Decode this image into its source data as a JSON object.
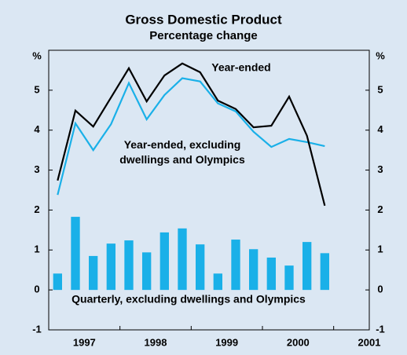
{
  "chart_data": {
    "type": "combo",
    "title": "Gross Domestic Product",
    "subtitle": "Percentage change",
    "y_unit": "%",
    "xlim": [
      1997,
      2001.5
    ],
    "xticks": [
      {
        "value": 1997.5,
        "label": "1997"
      },
      {
        "value": 1998.5,
        "label": "1998"
      },
      {
        "value": 1999.5,
        "label": "1999"
      },
      {
        "value": 2000.5,
        "label": "2000"
      },
      {
        "value": 2001.5,
        "label": "2001"
      }
    ],
    "ylim": [
      -1,
      6
    ],
    "yticks": [
      -1,
      0,
      1,
      2,
      3,
      4,
      5
    ],
    "x": [
      1997.125,
      1997.375,
      1997.625,
      1997.875,
      1998.125,
      1998.375,
      1998.625,
      1998.875,
      1999.125,
      1999.375,
      1999.625,
      1999.875,
      2000.125,
      2000.375,
      2000.625,
      2000.875
    ],
    "series": [
      {
        "name": "Quarterly, excluding dwellings and Olympics",
        "type": "bar",
        "color": "#1ab0e8",
        "values": [
          0.41,
          1.83,
          0.85,
          1.16,
          1.24,
          0.94,
          1.44,
          1.54,
          1.14,
          0.41,
          1.26,
          1.02,
          0.81,
          0.61,
          1.2,
          0.92
        ]
      },
      {
        "name": "Year-ended, excluding dwellings and Olympics",
        "type": "line",
        "color": "#1ab0e8",
        "values": [
          2.38,
          4.17,
          3.5,
          4.15,
          5.18,
          4.27,
          4.88,
          5.3,
          5.22,
          4.67,
          4.47,
          3.96,
          3.58,
          3.78,
          3.7,
          3.6
        ]
      },
      {
        "name": "Year-ended",
        "type": "line",
        "color": "#000000",
        "values": [
          2.74,
          4.49,
          4.09,
          4.82,
          5.55,
          4.72,
          5.37,
          5.67,
          5.45,
          4.74,
          4.53,
          4.07,
          4.11,
          4.84,
          3.86,
          2.11
        ]
      }
    ]
  }
}
